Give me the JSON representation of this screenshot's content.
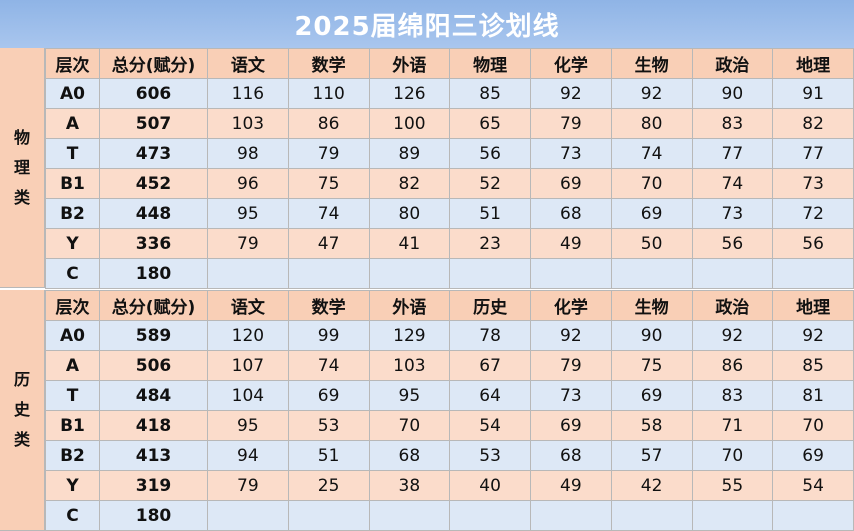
{
  "title": "2025届绵阳三诊划线",
  "accent_colors": {
    "title_bg": "#a9c6ee",
    "header_bg": "#f9cfb6",
    "row_blue": "#dde8f6",
    "row_peach": "#fbdccb"
  },
  "sections": [
    {
      "label": [
        "物",
        "理",
        "类"
      ],
      "headers": [
        "层次",
        "总分(赋分)",
        "语文",
        "数学",
        "外语",
        "物理",
        "化学",
        "生物",
        "政治",
        "地理"
      ],
      "rows": [
        [
          "A0",
          "606",
          "116",
          "110",
          "126",
          "85",
          "92",
          "92",
          "90",
          "91"
        ],
        [
          "A",
          "507",
          "103",
          "86",
          "100",
          "65",
          "79",
          "80",
          "83",
          "82"
        ],
        [
          "T",
          "473",
          "98",
          "79",
          "89",
          "56",
          "73",
          "74",
          "77",
          "77"
        ],
        [
          "B1",
          "452",
          "96",
          "75",
          "82",
          "52",
          "69",
          "70",
          "74",
          "73"
        ],
        [
          "B2",
          "448",
          "95",
          "74",
          "80",
          "51",
          "68",
          "69",
          "73",
          "72"
        ],
        [
          "Y",
          "336",
          "79",
          "47",
          "41",
          "23",
          "49",
          "50",
          "56",
          "56"
        ],
        [
          "C",
          "180",
          "",
          "",
          "",
          "",
          "",
          "",
          "",
          ""
        ]
      ]
    },
    {
      "label": [
        "历",
        "史",
        "类"
      ],
      "headers": [
        "层次",
        "总分(赋分)",
        "语文",
        "数学",
        "外语",
        "历史",
        "化学",
        "生物",
        "政治",
        "地理"
      ],
      "rows": [
        [
          "A0",
          "589",
          "120",
          "99",
          "129",
          "78",
          "92",
          "90",
          "92",
          "92"
        ],
        [
          "A",
          "506",
          "107",
          "74",
          "103",
          "67",
          "79",
          "75",
          "86",
          "85"
        ],
        [
          "T",
          "484",
          "104",
          "69",
          "95",
          "64",
          "73",
          "69",
          "83",
          "81"
        ],
        [
          "B1",
          "418",
          "95",
          "53",
          "70",
          "54",
          "69",
          "58",
          "71",
          "70"
        ],
        [
          "B2",
          "413",
          "94",
          "51",
          "68",
          "53",
          "68",
          "57",
          "70",
          "69"
        ],
        [
          "Y",
          "319",
          "79",
          "25",
          "38",
          "40",
          "49",
          "42",
          "55",
          "54"
        ],
        [
          "C",
          "180",
          "",
          "",
          "",
          "",
          "",
          "",
          "",
          ""
        ]
      ]
    }
  ]
}
